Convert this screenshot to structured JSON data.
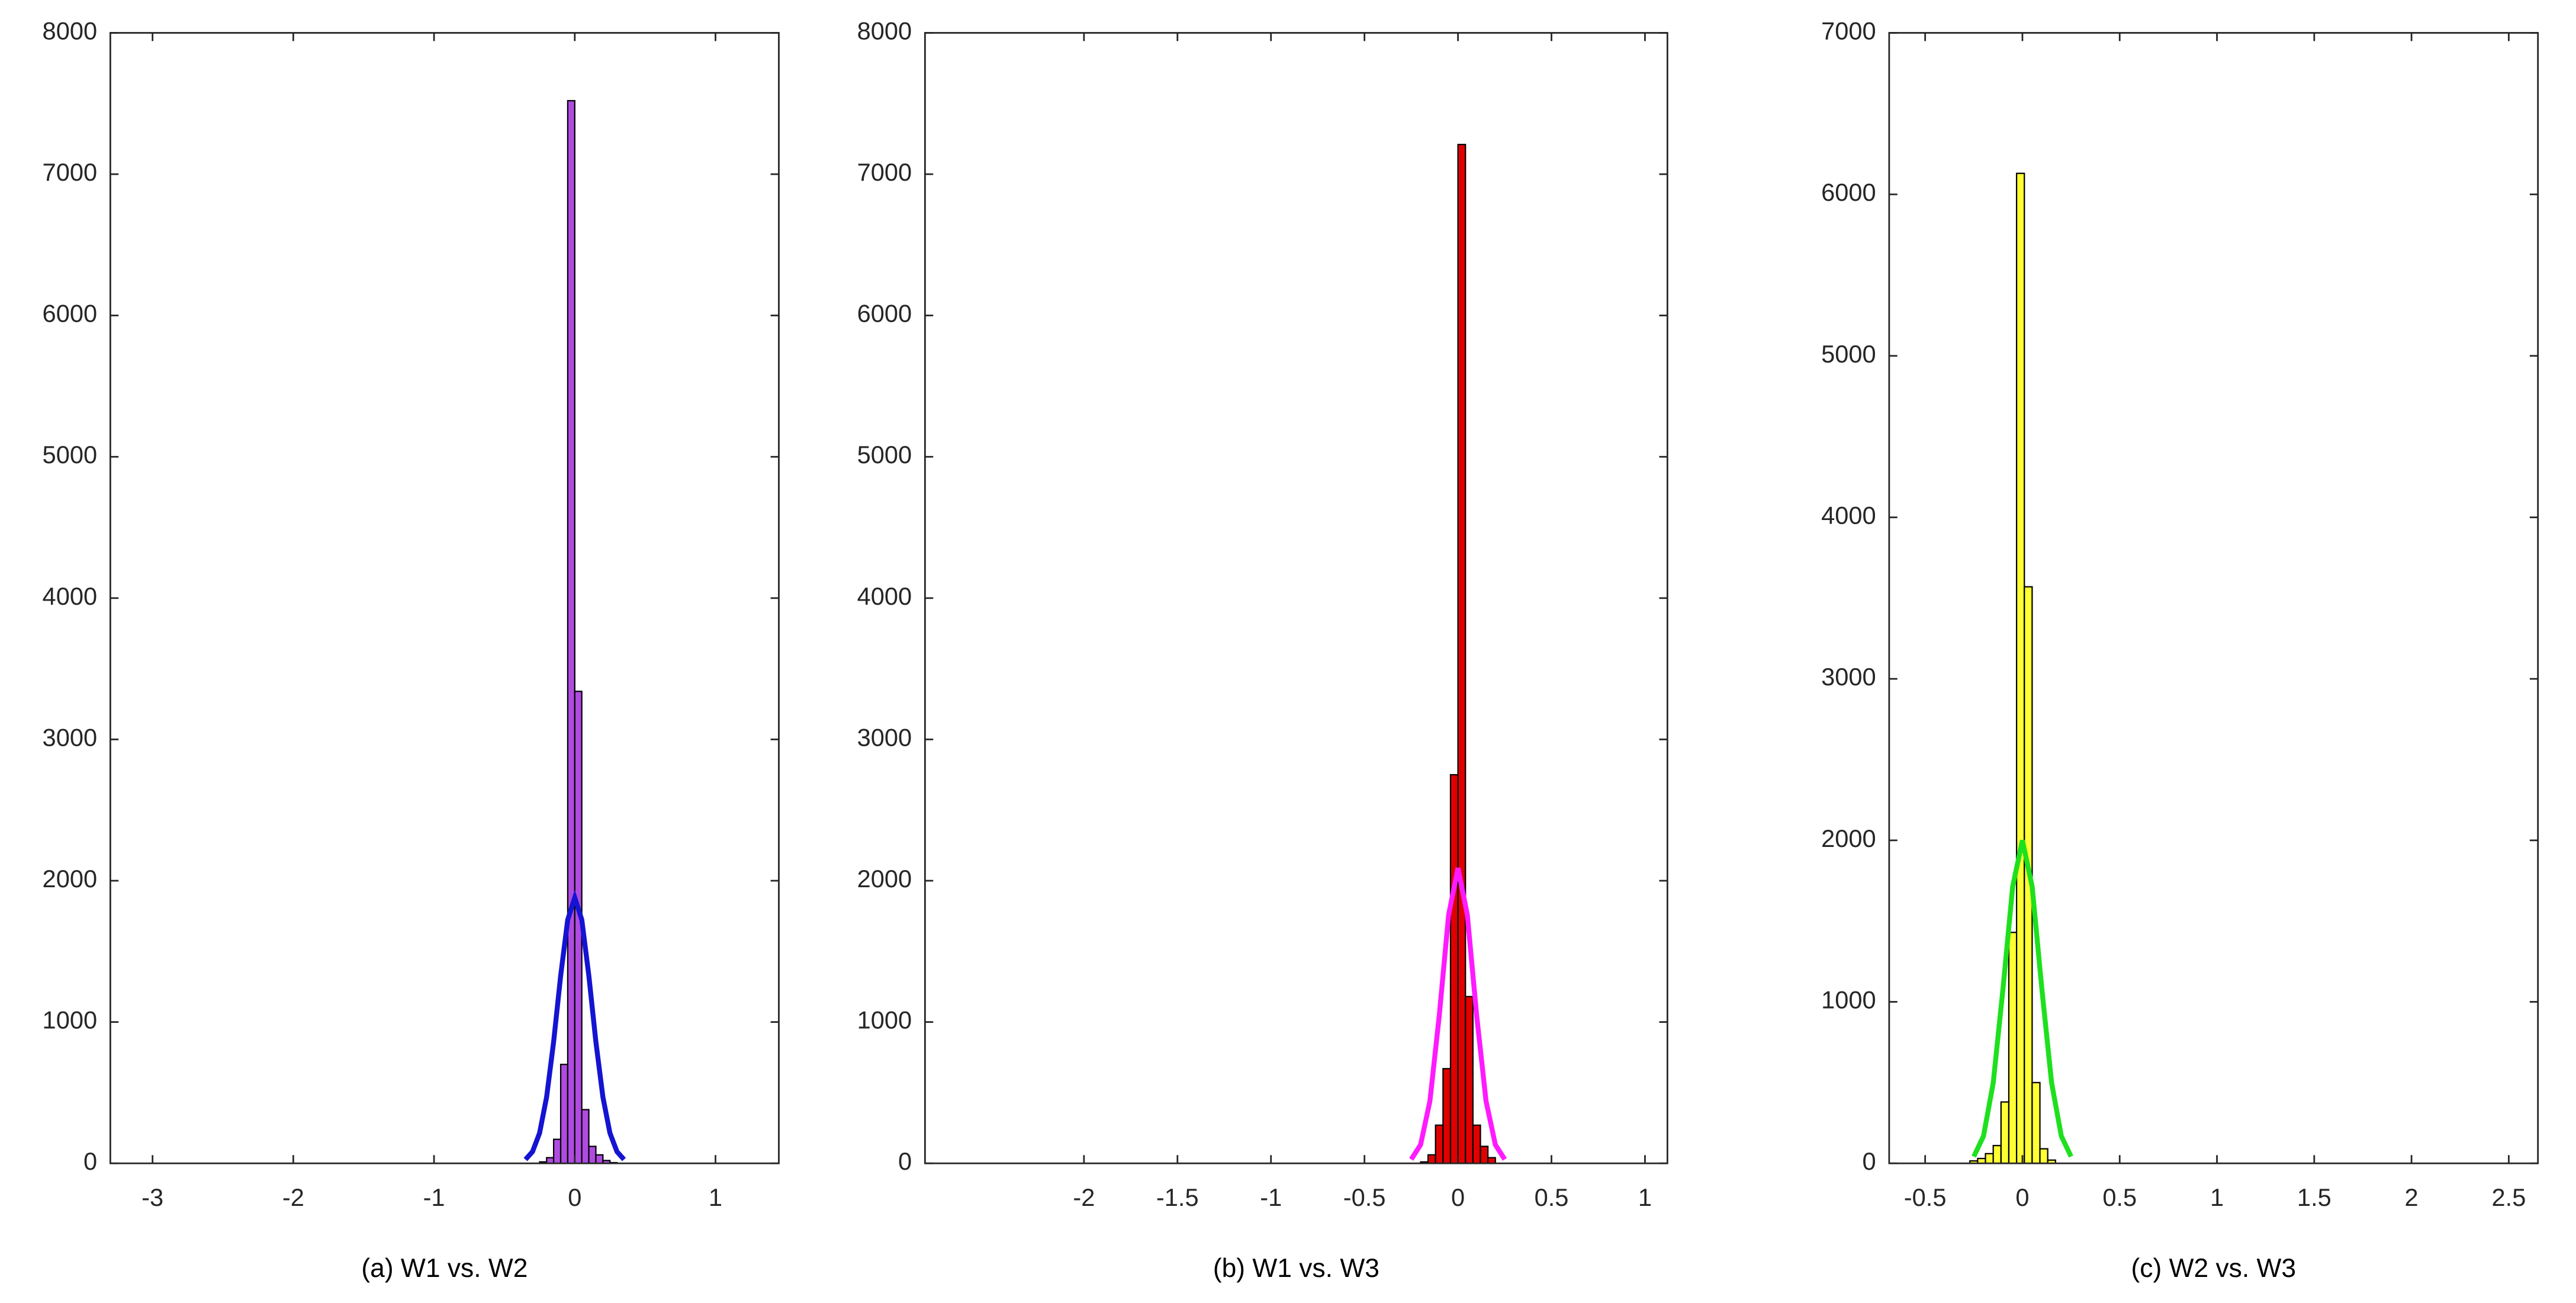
{
  "chart_data": [
    {
      "type": "histogram",
      "caption": "(a) W1 vs. W2",
      "color": "#b04be0",
      "bins": [
        -0.25,
        -0.2,
        -0.15,
        -0.1,
        -0.05,
        0,
        0.05,
        0.1,
        0.15,
        0.2,
        0.25,
        0.3
      ],
      "values": [
        10,
        40,
        170,
        700,
        7520,
        3340,
        380,
        120,
        60,
        20,
        5
      ],
      "fit": {
        "color": "#1414d2",
        "x": [
          -0.35,
          -0.3,
          -0.25,
          -0.2,
          -0.15,
          -0.1,
          -0.05,
          0,
          0.05,
          0.1,
          0.15,
          0.2,
          0.25,
          0.3,
          0.35
        ],
        "values": [
          27,
          83,
          214,
          469,
          861,
          1329,
          1724,
          1880,
          1724,
          1329,
          861,
          469,
          214,
          83,
          27
        ]
      },
      "xlim": [
        -3.3,
        1.45
      ],
      "xticks": [
        -3,
        -2,
        -1,
        0,
        1
      ],
      "ylim": [
        0,
        8000
      ],
      "yticks": [
        0,
        1000,
        2000,
        3000,
        4000,
        5000,
        6000,
        7000,
        8000
      ]
    },
    {
      "type": "histogram",
      "caption": "(b) W1 vs. W3",
      "color": "#e00000",
      "bins": [
        -0.2,
        -0.16,
        -0.12,
        -0.08,
        -0.04,
        0,
        0.04,
        0.08,
        0.12,
        0.16,
        0.2
      ],
      "values": [
        10,
        60,
        270,
        670,
        2750,
        7210,
        1180,
        270,
        120,
        40
      ],
      "fit": {
        "color": "#ff1aff",
        "x": [
          -0.25,
          -0.2,
          -0.15,
          -0.1,
          -0.05,
          0,
          0.05,
          0.1,
          0.15,
          0.2,
          0.25
        ],
        "values": [
          28,
          131,
          441,
          1046,
          1758,
          2090,
          1758,
          1046,
          441,
          131,
          28
        ]
      },
      "xlim": [
        -2.85,
        1.12
      ],
      "xticks": [
        -2,
        -1.5,
        -1,
        -0.5,
        0,
        0.5,
        1
      ],
      "ylim": [
        0,
        8000
      ],
      "yticks": [
        0,
        1000,
        2000,
        3000,
        4000,
        5000,
        6000,
        7000,
        8000
      ]
    },
    {
      "type": "histogram",
      "caption": "(c) W2 vs. W3",
      "color": "#ffff33",
      "bins": [
        -0.27,
        -0.23,
        -0.19,
        -0.15,
        -0.11,
        -0.07,
        -0.03,
        0.01,
        0.05,
        0.09,
        0.13,
        0.17
      ],
      "values": [
        15,
        30,
        60,
        110,
        380,
        1430,
        6130,
        3570,
        500,
        90,
        20
      ],
      "fit": {
        "color": "#1ee01e",
        "x": [
          -0.25,
          -0.2,
          -0.15,
          -0.1,
          -0.05,
          0,
          0.05,
          0.1,
          0.15,
          0.2,
          0.25
        ],
        "values": [
          42,
          169,
          499,
          1079,
          1714,
          2000,
          1714,
          1079,
          499,
          169,
          42
        ]
      },
      "xlim": [
        -0.685,
        2.65
      ],
      "xticks": [
        -0.5,
        0,
        0.5,
        1,
        1.5,
        2,
        2.5
      ],
      "ylim": [
        0,
        7000
      ],
      "yticks": [
        0,
        1000,
        2000,
        3000,
        4000,
        5000,
        6000,
        7000
      ]
    }
  ]
}
